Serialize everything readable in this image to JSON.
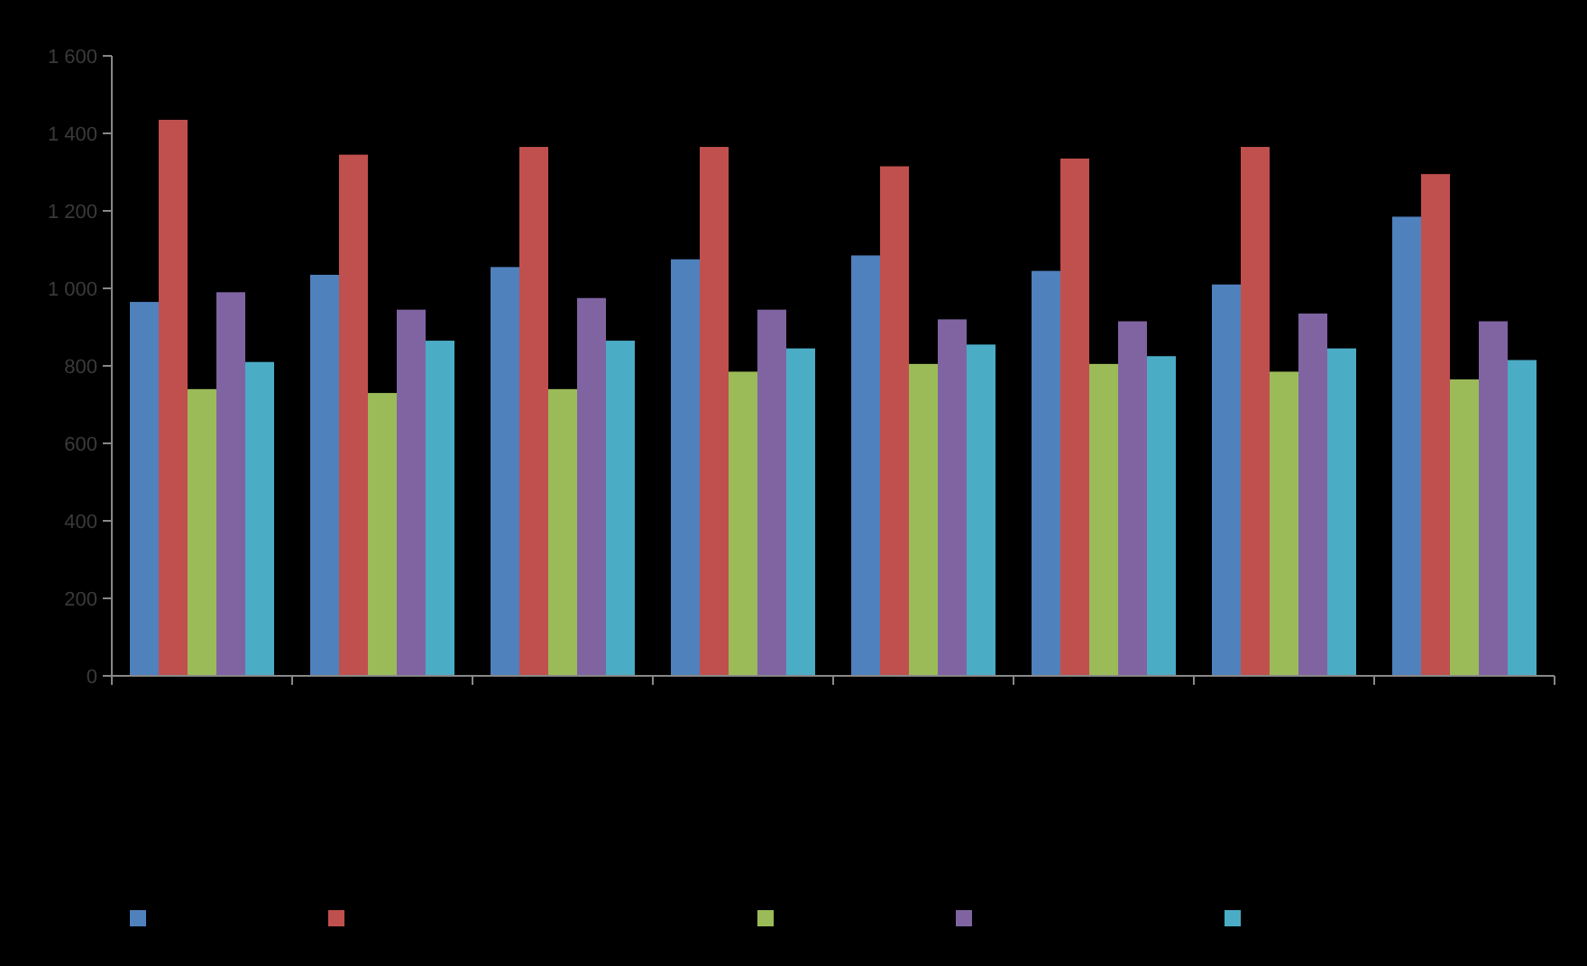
{
  "chart_data": {
    "type": "bar",
    "categories": [
      null,
      null,
      null,
      null,
      null,
      null,
      null,
      null
    ],
    "series": [
      {
        "color": "#4f81bd",
        "values": [
          965,
          1035,
          1055,
          1075,
          1085,
          1045,
          1010,
          1185
        ]
      },
      {
        "color": "#c0504d",
        "values": [
          1435,
          1345,
          1365,
          1365,
          1315,
          1335,
          1365,
          1295
        ]
      },
      {
        "color": "#9bbb59",
        "values": [
          740,
          730,
          740,
          785,
          805,
          805,
          785,
          765
        ]
      },
      {
        "color": "#8064a2",
        "values": [
          990,
          945,
          975,
          945,
          920,
          915,
          935,
          915
        ]
      },
      {
        "color": "#4bacc6",
        "values": [
          810,
          865,
          865,
          845,
          855,
          825,
          845,
          815
        ]
      }
    ],
    "ylim": [
      0,
      1600
    ],
    "yticks": [
      0,
      200,
      400,
      600,
      800,
      {
        "value": 1000,
        "label": "1 000"
      },
      {
        "value": 1200,
        "label": "1 200"
      },
      {
        "value": 1400,
        "label": "1 400"
      },
      {
        "value": 1600,
        "label": "1 600"
      }
    ],
    "grid": false
  }
}
